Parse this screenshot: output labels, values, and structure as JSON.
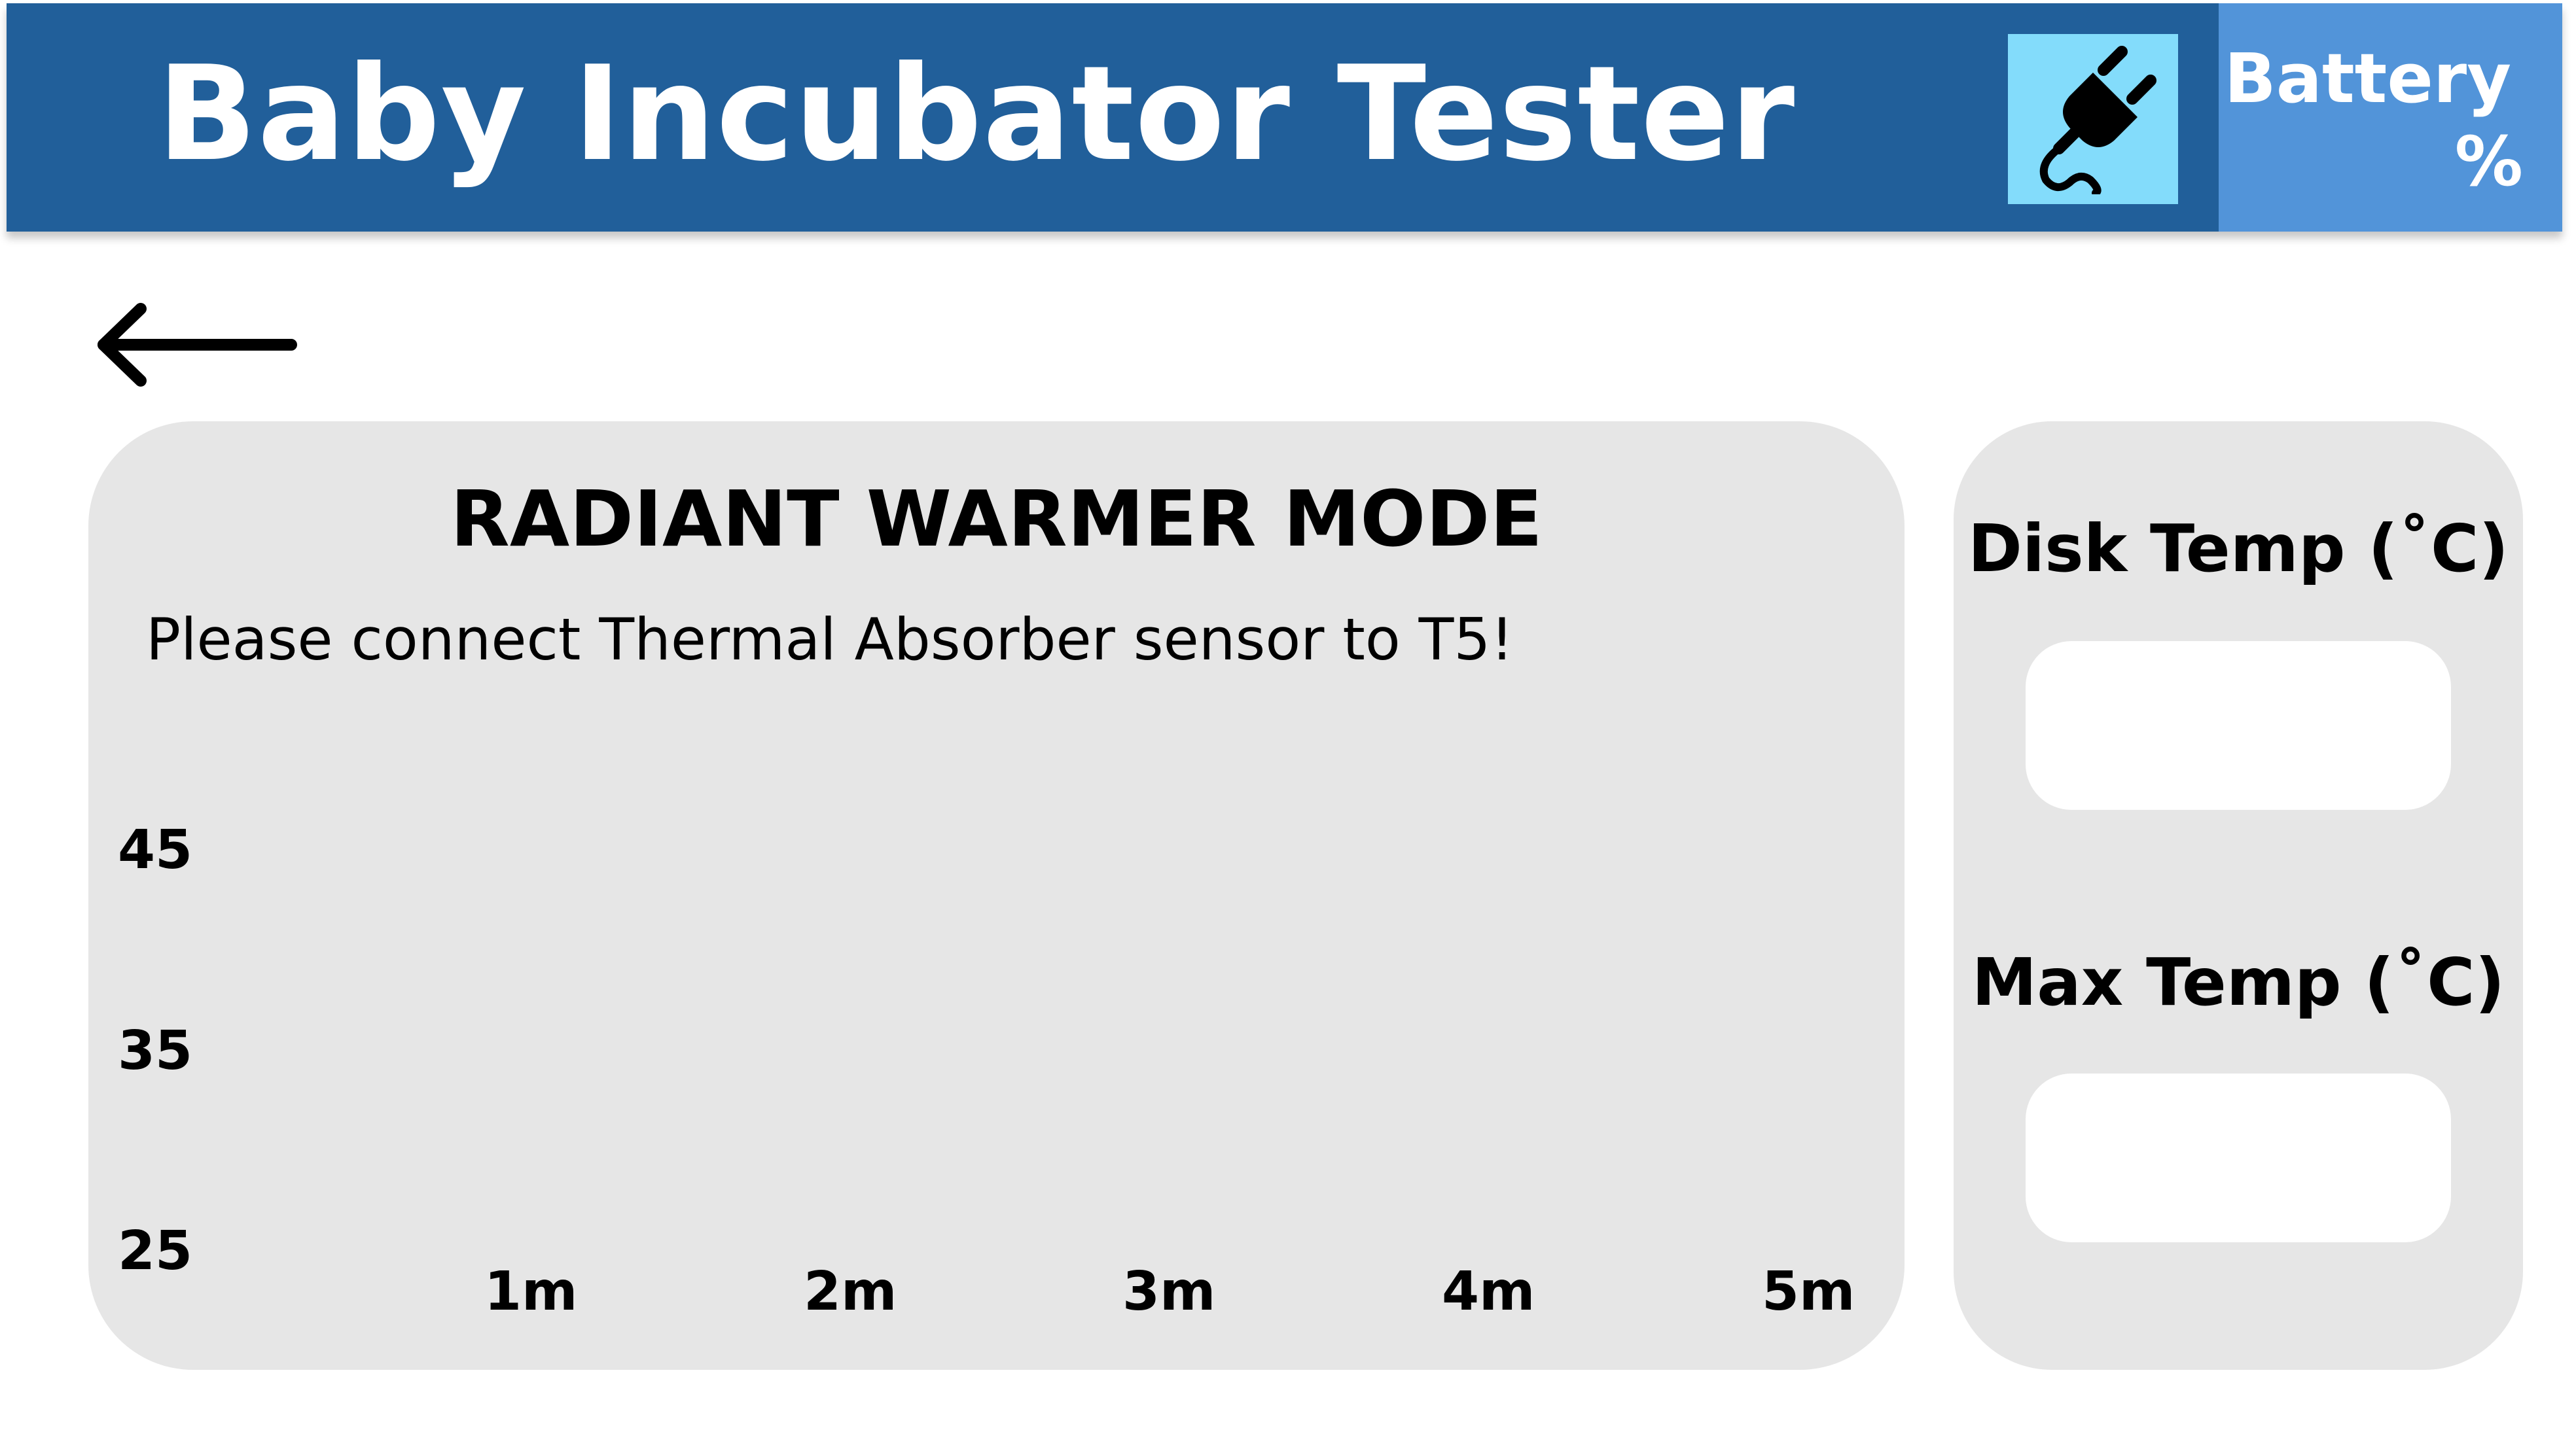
{
  "header": {
    "title": "Baby Incubator Tester",
    "power_icon": "power-plug-icon",
    "battery_label": "Battery",
    "battery_value": "%"
  },
  "nav": {
    "back_icon": "arrow-left-icon"
  },
  "main": {
    "mode_title": "RADIANT WARMER MODE",
    "instruction": "Please connect Thermal Absorber sensor to T5!",
    "graph": {
      "y_ticks": [
        "45",
        "35",
        "25"
      ],
      "x_ticks": [
        "1m",
        "2m",
        "3m",
        "4m",
        "5m"
      ]
    }
  },
  "side": {
    "disk_temp_label": "Disk Temp (˚C)",
    "disk_temp_value": "",
    "max_temp_label": "Max Temp (˚C)",
    "max_temp_value": ""
  },
  "colors": {
    "header_bg": "#215f9a",
    "battery_bg": "#5294d9",
    "power_bg": "#83dcfb",
    "panel_bg": "#e6e6e6"
  }
}
